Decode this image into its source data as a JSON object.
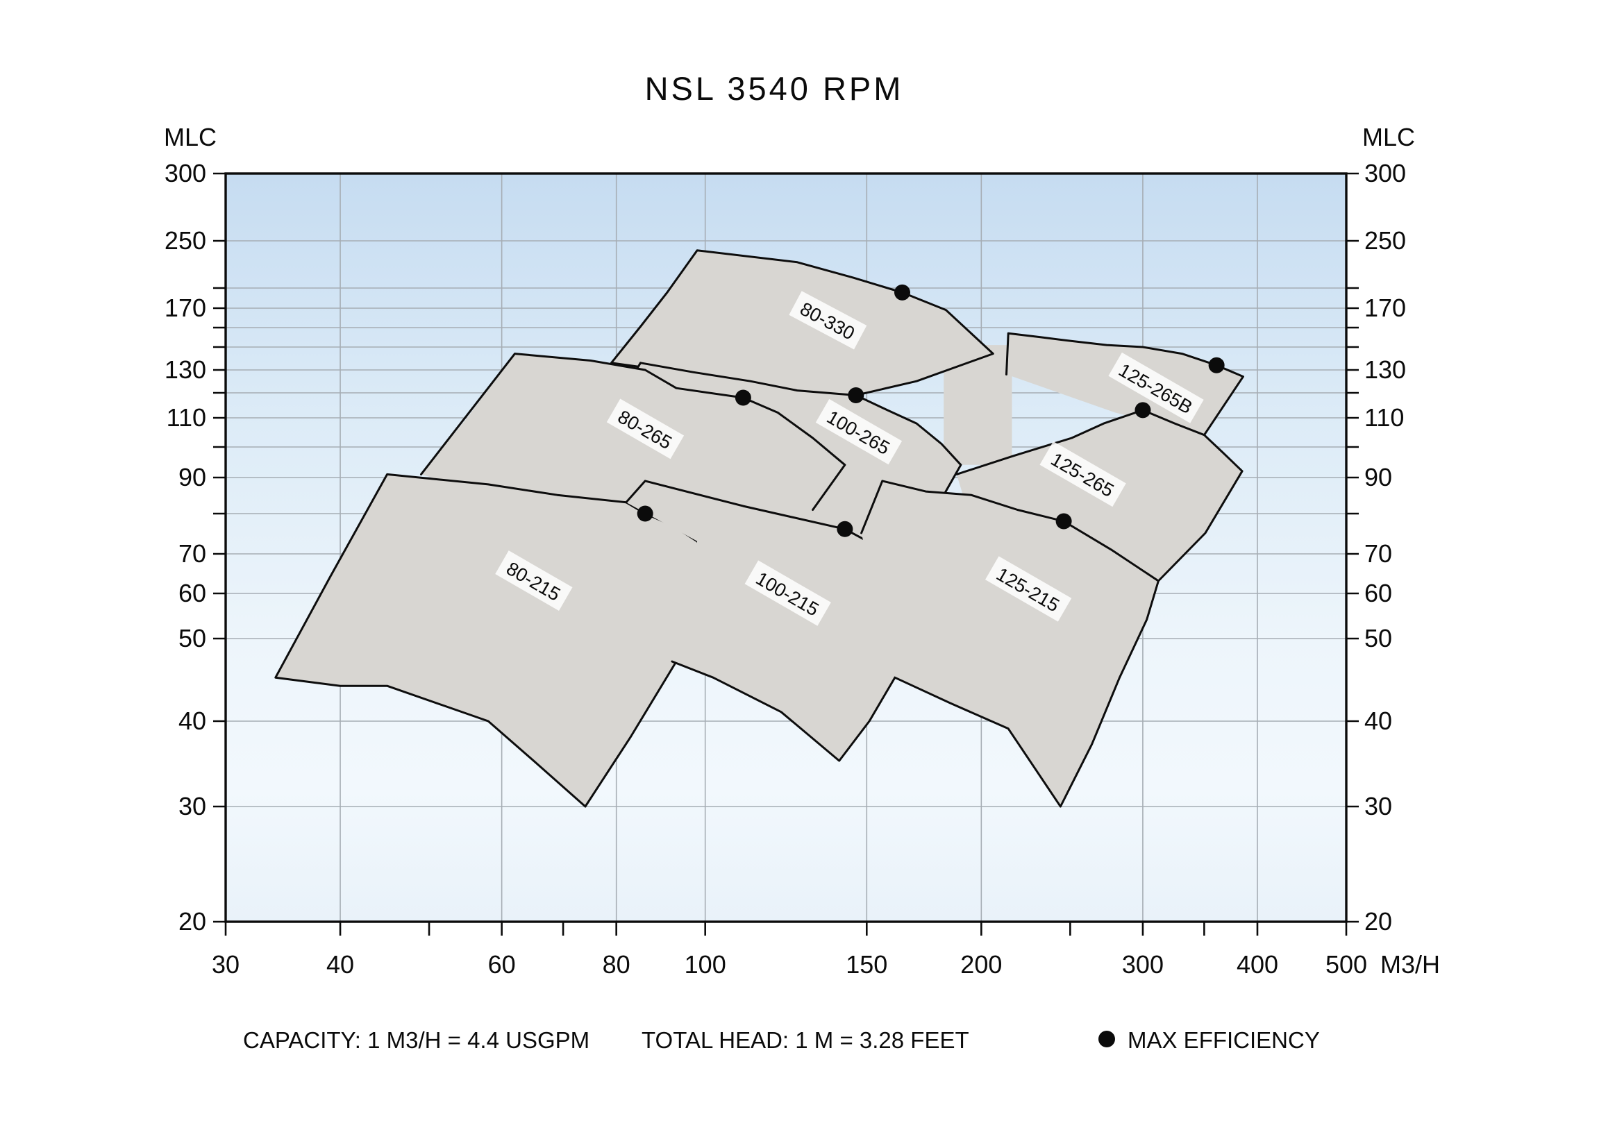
{
  "title": "NSL 3540 RPM",
  "axis": {
    "y_unit_left": "MLC",
    "y_unit_right": "MLC",
    "x_unit": "M3/H",
    "x_scale": "log",
    "x_ticks_labeled": [
      30,
      40,
      60,
      80,
      100,
      150,
      200,
      300,
      400,
      500
    ],
    "x_ticks_minor": [
      50,
      70,
      250,
      350
    ],
    "y_ticks_labeled": [
      300,
      250,
      170,
      130,
      110,
      90,
      70,
      60,
      50,
      40,
      30,
      20
    ],
    "y_ticks_minor": [
      200,
      150,
      140,
      120,
      100,
      80
    ]
  },
  "legend": {
    "capacity": "CAPACITY: 1 M3/H = 4.4 USGPM",
    "total_head": "TOTAL HEAD: 1 M = 3.28 FEET",
    "max_efficiency_label": "MAX EFFICIENCY"
  },
  "colors": {
    "envelope_fill": "#d8d6d2",
    "line": "#0d0d0d",
    "grid": "#a6adb4",
    "bg_top": "#c6dcf1",
    "bg_mid": "#e6f0f9",
    "bg_bottom": "#eaf3fa"
  },
  "chart_data": {
    "type": "area",
    "subtype": "pump-envelope-selection-chart",
    "title": "NSL 3540 RPM",
    "xlabel": "M3/H",
    "ylabel": "MLC",
    "x_range": [
      30,
      500
    ],
    "y_range": [
      20,
      300
    ],
    "grid": true,
    "legend_position": "bottom",
    "envelopes": [
      {
        "id": "filler-gap",
        "label": null,
        "dot": null,
        "stroke_closed": false,
        "fill": [
          [
            182,
            141
          ],
          [
            216,
            141
          ],
          [
            216,
            94
          ],
          [
            182,
            94
          ]
        ],
        "stroke": []
      },
      {
        "id": "80-330",
        "label": {
          "text": "80-330",
          "x": 136,
          "y": 157,
          "rot": 28
        },
        "dot": [
          164,
          193
        ],
        "stroke_closed": true,
        "fill": [
          [
            98,
            239
          ],
          [
            126,
            226
          ],
          [
            145,
            210
          ],
          [
            164,
            193
          ],
          [
            183,
            168
          ],
          [
            206,
            137
          ],
          [
            170,
            125
          ],
          [
            146,
            119
          ],
          [
            110,
            118
          ],
          [
            86,
            131
          ],
          [
            79,
            133
          ],
          [
            85,
            151
          ],
          [
            91,
            194
          ]
        ],
        "stroke": [
          [
            98,
            239
          ],
          [
            126,
            226
          ],
          [
            145,
            210
          ],
          [
            164,
            193
          ],
          [
            183,
            168
          ],
          [
            206,
            137
          ],
          [
            170,
            125
          ],
          [
            146,
            119
          ],
          [
            110,
            118
          ],
          [
            86,
            131
          ],
          [
            79,
            133
          ],
          [
            85,
            151
          ],
          [
            91,
            194
          ]
        ]
      },
      {
        "id": "100-265",
        "label": {
          "text": "100-265",
          "x": 147,
          "y": 105,
          "rot": 30
        },
        "dot": [
          146,
          119
        ],
        "stroke_closed": false,
        "fill": [
          [
            83,
            126
          ],
          [
            85,
            133
          ],
          [
            97,
            129
          ],
          [
            112,
            125
          ],
          [
            126,
            121
          ],
          [
            146,
            119
          ],
          [
            158,
            113
          ],
          [
            170,
            108
          ],
          [
            181,
            101
          ],
          [
            190,
            94
          ],
          [
            182,
            85
          ],
          [
            170,
            64
          ],
          [
            140,
            60
          ],
          [
            105,
            75
          ],
          [
            83,
            110
          ]
        ],
        "stroke": [
          [
            83,
            126
          ],
          [
            85,
            133
          ],
          [
            97,
            129
          ],
          [
            112,
            125
          ],
          [
            126,
            121
          ],
          [
            146,
            119
          ],
          [
            158,
            113
          ],
          [
            170,
            108
          ],
          [
            181,
            101
          ],
          [
            190,
            94
          ],
          [
            182,
            85
          ]
        ]
      },
      {
        "id": "80-265",
        "label": {
          "text": "80-265",
          "x": 86,
          "y": 106,
          "rot": 30
        },
        "dot": [
          110,
          118
        ],
        "stroke_closed": false,
        "fill": [
          [
            62,
            137
          ],
          [
            75,
            134
          ],
          [
            86,
            130
          ],
          [
            93,
            122
          ],
          [
            110,
            118
          ],
          [
            120,
            112
          ],
          [
            131,
            103
          ],
          [
            142,
            94
          ],
          [
            131,
            81
          ],
          [
            125,
            68
          ],
          [
            95,
            70
          ],
          [
            60,
            84
          ],
          [
            49,
            91
          ],
          [
            55,
            110
          ]
        ],
        "stroke": [
          [
            49,
            91
          ],
          [
            62,
            137
          ],
          [
            75,
            134
          ],
          [
            86,
            130
          ],
          [
            93,
            122
          ],
          [
            110,
            118
          ],
          [
            120,
            112
          ],
          [
            131,
            103
          ],
          [
            142,
            94
          ],
          [
            131,
            81
          ]
        ]
      },
      {
        "id": "125-265B",
        "label": {
          "text": "125-265B",
          "x": 310,
          "y": 122,
          "rot": 30
        },
        "dot": [
          361,
          132
        ],
        "stroke_closed": false,
        "fill": [
          [
            213,
            128
          ],
          [
            214,
            147
          ],
          [
            232,
            145
          ],
          [
            251,
            143
          ],
          [
            274,
            141
          ],
          [
            300,
            140
          ],
          [
            331,
            137
          ],
          [
            361,
            132
          ],
          [
            386,
            127
          ],
          [
            350,
            104
          ],
          [
            280,
            112
          ]
        ],
        "stroke": [
          [
            213,
            128
          ],
          [
            214,
            147
          ],
          [
            232,
            145
          ],
          [
            251,
            143
          ],
          [
            274,
            141
          ],
          [
            300,
            140
          ],
          [
            331,
            137
          ],
          [
            361,
            132
          ],
          [
            386,
            127
          ],
          [
            350,
            104
          ]
        ]
      },
      {
        "id": "125-265",
        "label": {
          "text": "125-265",
          "x": 258,
          "y": 91,
          "rot": 30
        },
        "dot": [
          300,
          113
        ],
        "stroke_closed": false,
        "fill": [
          [
            188,
            91
          ],
          [
            217,
            97
          ],
          [
            251,
            103
          ],
          [
            272,
            108
          ],
          [
            300,
            113
          ],
          [
            325,
            108
          ],
          [
            350,
            104
          ],
          [
            367,
            98
          ],
          [
            385,
            92
          ],
          [
            351,
            75
          ],
          [
            312,
            63
          ],
          [
            280,
            55
          ],
          [
            240,
            60
          ],
          [
            200,
            70
          ],
          [
            196,
            76
          ]
        ],
        "stroke": [
          [
            188,
            91
          ],
          [
            217,
            97
          ],
          [
            251,
            103
          ],
          [
            272,
            108
          ],
          [
            300,
            113
          ],
          [
            325,
            108
          ],
          [
            350,
            104
          ],
          [
            367,
            98
          ],
          [
            385,
            92
          ],
          [
            351,
            75
          ],
          [
            312,
            63
          ]
        ]
      },
      {
        "id": "80-215",
        "label": {
          "text": "80-215",
          "x": 65,
          "y": 63,
          "rot": 30
        },
        "dot": [
          86,
          80
        ],
        "stroke_closed": true,
        "fill": [
          [
            45,
            91
          ],
          [
            58,
            88
          ],
          [
            69,
            85
          ],
          [
            82,
            83
          ],
          [
            86,
            80
          ],
          [
            92,
            77
          ],
          [
            98,
            73
          ],
          [
            104,
            61
          ],
          [
            99,
            51
          ],
          [
            93,
            47
          ],
          [
            83,
            38
          ],
          [
            74,
            30
          ],
          [
            65,
            35
          ],
          [
            58,
            40
          ],
          [
            45,
            44
          ],
          [
            40,
            44
          ],
          [
            34,
            45
          ],
          [
            39,
            64
          ]
        ],
        "stroke": [
          [
            45,
            91
          ],
          [
            58,
            88
          ],
          [
            69,
            85
          ],
          [
            82,
            83
          ],
          [
            86,
            80
          ],
          [
            92,
            77
          ],
          [
            98,
            73
          ],
          [
            104,
            61
          ],
          [
            99,
            51
          ],
          [
            93,
            47
          ],
          [
            83,
            38
          ],
          [
            74,
            30
          ],
          [
            65,
            35
          ],
          [
            58,
            40
          ],
          [
            45,
            44
          ],
          [
            40,
            44
          ],
          [
            34,
            45
          ],
          [
            39,
            64
          ]
        ]
      },
      {
        "id": "100-215",
        "label": {
          "text": "100-215",
          "x": 123,
          "y": 60,
          "rot": 30
        },
        "dot": [
          142,
          76
        ],
        "stroke_closed": false,
        "fill": [
          [
            82,
            83
          ],
          [
            86,
            89
          ],
          [
            110,
            82
          ],
          [
            142,
            76
          ],
          [
            165,
            68
          ],
          [
            185,
            60
          ],
          [
            174,
            50
          ],
          [
            161,
            45
          ],
          [
            151,
            40
          ],
          [
            140,
            35
          ],
          [
            121,
            41
          ],
          [
            102,
            45
          ],
          [
            92,
            47
          ],
          [
            98,
            73
          ]
        ],
        "stroke": [
          [
            82,
            83
          ],
          [
            86,
            89
          ],
          [
            110,
            82
          ],
          [
            142,
            76
          ],
          [
            165,
            68
          ],
          [
            185,
            60
          ],
          [
            174,
            50
          ],
          [
            161,
            45
          ],
          [
            151,
            40
          ],
          [
            140,
            35
          ],
          [
            121,
            41
          ],
          [
            102,
            45
          ],
          [
            92,
            47
          ]
        ]
      },
      {
        "id": "125-215",
        "label": {
          "text": "125-215",
          "x": 225,
          "y": 61,
          "rot": 30
        },
        "dot": [
          246,
          78
        ],
        "stroke_closed": false,
        "fill": [
          [
            148,
            75
          ],
          [
            156,
            89
          ],
          [
            174,
            86
          ],
          [
            195,
            85
          ],
          [
            219,
            81
          ],
          [
            246,
            78
          ],
          [
            277,
            71
          ],
          [
            312,
            63
          ],
          [
            303,
            54
          ],
          [
            283,
            45
          ],
          [
            264,
            37
          ],
          [
            244,
            30
          ],
          [
            214,
            39
          ],
          [
            185,
            42
          ],
          [
            161,
            45
          ]
        ],
        "stroke": [
          [
            148,
            75
          ],
          [
            156,
            89
          ],
          [
            174,
            86
          ],
          [
            195,
            85
          ],
          [
            219,
            81
          ],
          [
            246,
            78
          ],
          [
            277,
            71
          ],
          [
            312,
            63
          ],
          [
            303,
            54
          ],
          [
            283,
            45
          ],
          [
            264,
            37
          ],
          [
            244,
            30
          ],
          [
            214,
            39
          ],
          [
            185,
            42
          ],
          [
            161,
            45
          ]
        ]
      }
    ],
    "max_efficiency_points": [
      {
        "envelope": "80-330",
        "x": 164,
        "y": 193
      },
      {
        "envelope": "80-265",
        "x": 110,
        "y": 118
      },
      {
        "envelope": "100-265",
        "x": 146,
        "y": 119
      },
      {
        "envelope": "125-265B",
        "x": 361,
        "y": 132
      },
      {
        "envelope": "125-265",
        "x": 300,
        "y": 113
      },
      {
        "envelope": "80-215",
        "x": 86,
        "y": 80
      },
      {
        "envelope": "100-215",
        "x": 142,
        "y": 76
      },
      {
        "envelope": "125-215",
        "x": 246,
        "y": 78
      }
    ]
  }
}
